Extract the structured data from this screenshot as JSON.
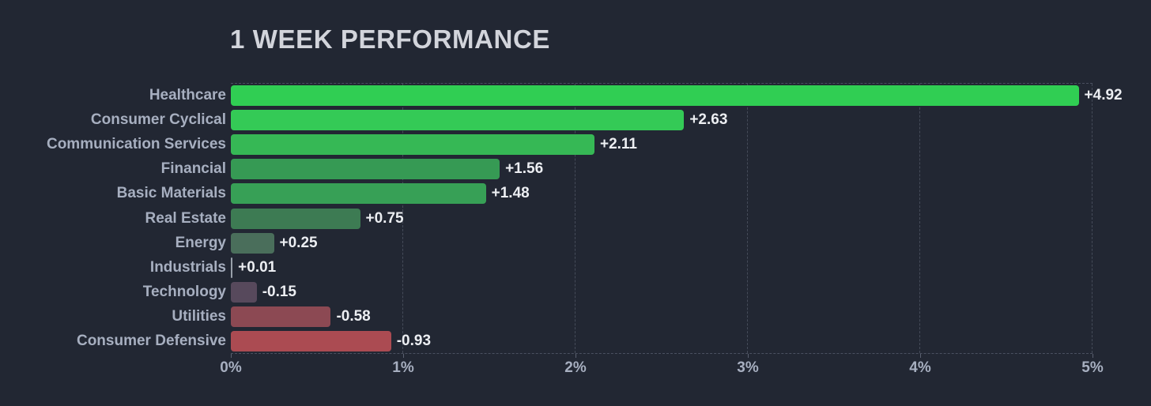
{
  "chart_data": {
    "type": "bar",
    "orientation": "horizontal",
    "title": "1 WEEK PERFORMANCE",
    "categories": [
      "Healthcare",
      "Consumer Cyclical",
      "Communication Services",
      "Financial",
      "Basic Materials",
      "Real Estate",
      "Energy",
      "Industrials",
      "Technology",
      "Utilities",
      "Consumer Defensive"
    ],
    "values": [
      4.92,
      2.63,
      2.11,
      1.56,
      1.48,
      0.75,
      0.25,
      0.01,
      -0.15,
      -0.58,
      -0.93
    ],
    "value_labels": [
      "+4.92",
      "+2.63",
      "+2.11",
      "+1.56",
      "+1.48",
      "+0.75",
      "+0.25",
      "+0.01",
      "-0.15",
      "-0.58",
      "-0.93"
    ],
    "bar_colors": [
      "#30ce53",
      "#34ca56",
      "#36b855",
      "#369a54",
      "#37a056",
      "#3d7b53",
      "#4a6e5b",
      "#99a0ab",
      "#57495c",
      "#8c4953",
      "#ab4b52"
    ],
    "bars_show_absolute_value": true,
    "xlabel": "",
    "ylabel": "",
    "x_tick_labels": [
      "0%",
      "1%",
      "2%",
      "3%",
      "4%",
      "5%"
    ],
    "xlim": [
      0,
      5
    ],
    "grid": "vertical-dashed",
    "legend": "none"
  },
  "colors": {
    "background": "#222733",
    "title_text": "#d2d4db",
    "category_text": "#a7afc0",
    "value_text": "#eceef2",
    "axis_text": "#a7afc0",
    "gridline": "#454b59",
    "plot_border": "#4a5060",
    "positive_strong": "#30ce53",
    "negative_strong": "#ab4b52"
  }
}
